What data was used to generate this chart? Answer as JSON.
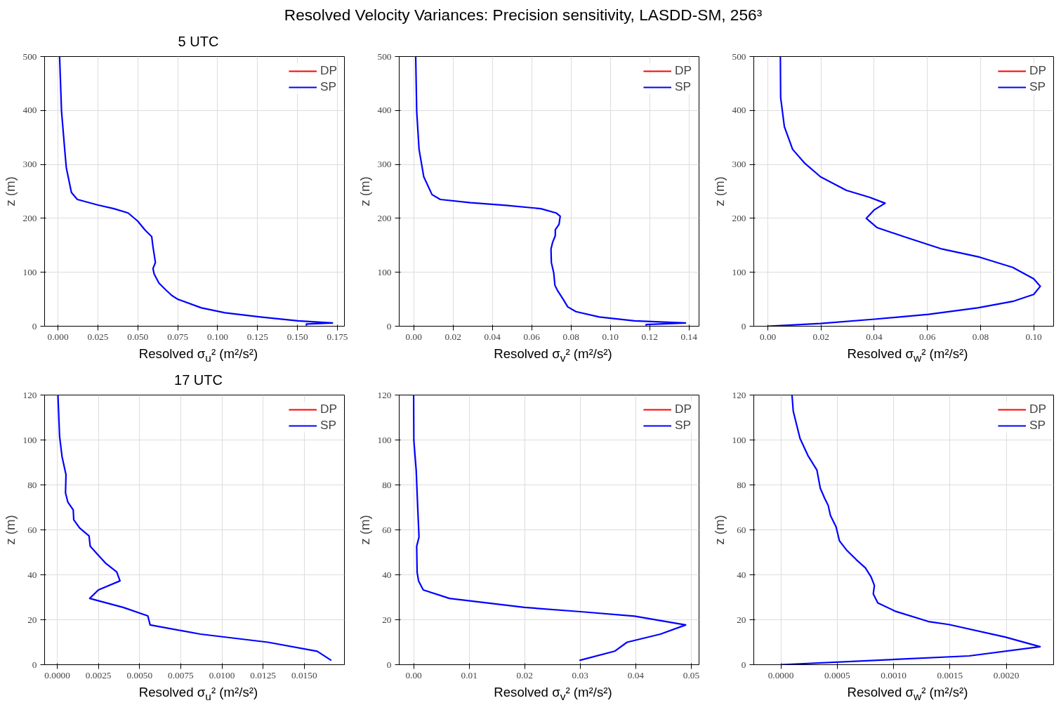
{
  "chart_data": [
    {
      "type": "line",
      "title": "5 UTC",
      "annotations": [
        "Resolved Velocity Variances: Precision sensitivity, LASDD-SM, 256³"
      ],
      "xlabel": "Resolved σ$_{u}$² (m²/s²)",
      "ylabel": "z (m)",
      "xlim": [
        -0.0084,
        0.1794
      ],
      "ylim": [
        0,
        500
      ],
      "xticks": [
        {
          "value": 0,
          "label": "0.000"
        },
        {
          "value": 0.025,
          "label": "0.025"
        },
        {
          "value": 0.05,
          "label": "0.050"
        },
        {
          "value": 0.075,
          "label": "0.075"
        },
        {
          "value": 0.1,
          "label": "0.100"
        },
        {
          "value": 0.125,
          "label": "0.125"
        },
        {
          "value": 0.15,
          "label": "0.150"
        },
        {
          "value": 0.175,
          "label": "0.175"
        }
      ],
      "yticks": [
        0,
        100,
        200,
        300,
        400,
        500
      ],
      "grid": true,
      "legend": "top right",
      "line_style": "solid",
      "series": [
        {
          "name": "DP",
          "color": "#ff0000",
          "x": [
            null
          ],
          "values": [
            null
          ]
        },
        {
          "name": "SP",
          "color": "#0000ff",
          "x": [
            0.001,
            0.0022,
            0.0043,
            0.0052,
            0.0084,
            0.0121,
            0.0247,
            0.035,
            0.0439,
            0.0499,
            0.0543,
            0.0587,
            0.0595,
            0.0602,
            0.061,
            0.0595,
            0.0602,
            0.0632,
            0.0676,
            0.0713,
            0.075,
            0.0898,
            0.1046,
            0.1268,
            0.1504,
            0.1719,
            0.1556,
            0.1556
          ],
          "values": [
            500,
            399,
            324,
            294,
            248,
            235,
            225,
            218,
            210,
            195,
            179,
            166,
            147,
            134,
            118,
            107,
            97,
            80,
            67,
            57,
            50,
            34,
            25,
            17,
            10,
            6,
            4,
            1
          ]
        }
      ]
    },
    {
      "type": "line",
      "xlabel": "Resolved σ$_{v}$² (m²/s²)",
      "ylabel": "z (m)",
      "xlim": [
        -0.0074,
        0.1451
      ],
      "ylim": [
        0,
        500
      ],
      "xticks": [
        {
          "value": 0,
          "label": "0.00"
        },
        {
          "value": 0.02,
          "label": "0.02"
        },
        {
          "value": 0.04,
          "label": "0.04"
        },
        {
          "value": 0.06,
          "label": "0.06"
        },
        {
          "value": 0.08,
          "label": "0.08"
        },
        {
          "value": 0.1,
          "label": "0.10"
        },
        {
          "value": 0.12,
          "label": "0.12"
        },
        {
          "value": 0.14,
          "label": "0.14"
        }
      ],
      "yticks": [
        0,
        100,
        200,
        300,
        400,
        500
      ],
      "grid": true,
      "legend": "top right",
      "line_style": "solid",
      "series": [
        {
          "name": "DP",
          "color": "#ff0000",
          "x": [
            null
          ],
          "values": [
            null
          ]
        },
        {
          "name": "SP",
          "color": "#0000ff",
          "x": [
            0.001,
            0.0015,
            0.0027,
            0.0051,
            0.0093,
            0.0135,
            0.0289,
            0.0468,
            0.0646,
            0.0724,
            0.0745,
            0.0739,
            0.072,
            0.072,
            0.0706,
            0.0698,
            0.07,
            0.0712,
            0.0718,
            0.073,
            0.076,
            0.0783,
            0.0825,
            0.0944,
            0.1123,
            0.1382,
            0.1182,
            0.1182
          ],
          "values": [
            500,
            399,
            328,
            277,
            244,
            235,
            229,
            224,
            218,
            210,
            204,
            189,
            179,
            168,
            155,
            143,
            118,
            99,
            76,
            67,
            50,
            36,
            27,
            17,
            10,
            6,
            3,
            1
          ]
        }
      ]
    },
    {
      "type": "line",
      "xlabel": "Resolved σ$_{w}$² (m²/s²)",
      "ylabel": "z (m)",
      "xlim": [
        -0.0053,
        0.1075
      ],
      "ylim": [
        0,
        500
      ],
      "xticks": [
        {
          "value": 0,
          "label": "0.00"
        },
        {
          "value": 0.02,
          "label": "0.02"
        },
        {
          "value": 0.04,
          "label": "0.04"
        },
        {
          "value": 0.06,
          "label": "0.06"
        },
        {
          "value": 0.08,
          "label": "0.08"
        },
        {
          "value": 0.1,
          "label": "0.10"
        }
      ],
      "yticks": [
        0,
        100,
        200,
        300,
        400,
        500
      ],
      "grid": true,
      "legend": "top right",
      "line_style": "solid",
      "series": [
        {
          "name": "DP",
          "color": "#ff0000",
          "x": [
            null
          ],
          "values": [
            null
          ]
        },
        {
          "name": "SP",
          "color": "#0000ff",
          "x": [
            0.0047,
            0.0048,
            0.0062,
            0.0093,
            0.0137,
            0.0198,
            0.0295,
            0.0383,
            0.0441,
            0.0401,
            0.037,
            0.041,
            0.0524,
            0.0656,
            0.0797,
            0.0921,
            0.1,
            0.1025,
            0.1,
            0.0921,
            0.0789,
            0.0604,
            0.0401,
            0.0198,
            0
          ],
          "values": [
            500,
            424,
            370,
            328,
            303,
            277,
            252,
            239,
            228,
            216,
            200,
            183,
            164,
            143,
            128,
            109,
            88,
            74,
            59,
            46,
            34,
            22,
            13,
            5,
            0
          ]
        }
      ]
    },
    {
      "type": "line",
      "title": "17 UTC",
      "xlabel": "Resolved σ$_{u}$² (m²/s²)",
      "ylabel": "z (m)",
      "xlim": [
        -0.00077,
        0.01744
      ],
      "ylim": [
        0,
        120
      ],
      "xticks": [
        {
          "value": 0,
          "label": "0.0000"
        },
        {
          "value": 0.0025,
          "label": "0.0025"
        },
        {
          "value": 0.005,
          "label": "0.0050"
        },
        {
          "value": 0.0075,
          "label": "0.0075"
        },
        {
          "value": 0.01,
          "label": "0.0100"
        },
        {
          "value": 0.0125,
          "label": "0.0125"
        },
        {
          "value": 0.015,
          "label": "0.0150"
        }
      ],
      "yticks": [
        0,
        20,
        40,
        60,
        80,
        100,
        120
      ],
      "grid": true,
      "legend": "top right",
      "line_style": "solid",
      "series": [
        {
          "name": "DP",
          "color": "#ff0000",
          "x": [
            null
          ],
          "values": [
            null
          ]
        },
        {
          "name": "SP",
          "color": "#0000ff",
          "x": [
            4e-05,
            0.00014,
            0.00029,
            0.00053,
            0.0005,
            0.00064,
            0.00097,
            0.001,
            0.00136,
            0.00193,
            0.002,
            0.00243,
            0.00293,
            0.00361,
            0.00381,
            0.0025,
            0.00197,
            0.004,
            0.0055,
            0.00564,
            0.00757,
            0.00871,
            0.01279,
            0.01579,
            0.01664
          ],
          "values": [
            120,
            101.7,
            92.6,
            84.5,
            76.5,
            72.4,
            68.9,
            64.5,
            60.8,
            57.3,
            52.7,
            49.2,
            45.2,
            41.3,
            37.3,
            33.3,
            29.5,
            25.5,
            21.7,
            17.7,
            15.1,
            13.6,
            10,
            6,
            1.9
          ]
        }
      ]
    },
    {
      "type": "line",
      "xlabel": "Resolved σ$_{v}$² (m²/s²)",
      "ylabel": "z (m)",
      "xlim": [
        -0.0026,
        0.0514
      ],
      "ylim": [
        0,
        120
      ],
      "xticks": [
        {
          "value": 0,
          "label": "0.00"
        },
        {
          "value": 0.01,
          "label": "0.01"
        },
        {
          "value": 0.02,
          "label": "0.02"
        },
        {
          "value": 0.03,
          "label": "0.03"
        },
        {
          "value": 0.04,
          "label": "0.04"
        },
        {
          "value": 0.05,
          "label": "0.05"
        }
      ],
      "yticks": [
        0,
        20,
        40,
        60,
        80,
        100,
        120
      ],
      "grid": true,
      "legend": "top right",
      "line_style": "solid",
      "series": [
        {
          "name": "DP",
          "color": "#ff0000",
          "x": [
            null
          ],
          "values": [
            null
          ]
        },
        {
          "name": "SP",
          "color": "#0000ff",
          "x": [
            0,
            4e-05,
            0.00046,
            0.00076,
            0.00097,
            0.00055,
            0.00063,
            0.00089,
            0.00173,
            0.00646,
            0.01996,
            0.03008,
            0.03979,
            0.04899,
            0.04443,
            0.03844,
            0.0362,
            0.02987
          ],
          "values": [
            120,
            99.7,
            86.6,
            68.4,
            56.8,
            52.7,
            41.1,
            37.3,
            33.3,
            29.5,
            25.5,
            23.6,
            21.6,
            17.7,
            13.6,
            10,
            6,
            1.9
          ]
        }
      ]
    },
    {
      "type": "line",
      "xlabel": "Resolved σ$_{w}$² (m²/s²)",
      "ylabel": "z (m)",
      "xlim": [
        -0.00024,
        0.00242
      ],
      "ylim": [
        0,
        120
      ],
      "xticks": [
        {
          "value": 0,
          "label": "0.0000"
        },
        {
          "value": 0.0005,
          "label": "0.0005"
        },
        {
          "value": 0.001,
          "label": "0.0010"
        },
        {
          "value": 0.0015,
          "label": "0.0015"
        },
        {
          "value": 0.002,
          "label": "0.0020"
        }
      ],
      "yticks": [
        0,
        20,
        40,
        60,
        80,
        100,
        120
      ],
      "grid": true,
      "legend": "top right",
      "line_style": "solid",
      "series": [
        {
          "name": "DP",
          "color": "#ff0000",
          "x": [
            null
          ],
          "values": [
            null
          ]
        },
        {
          "name": "SP",
          "color": "#0000ff",
          "x": [
            9.9e-05,
            0.00011,
            0.00017,
            0.00024,
            0.00032,
            0.00035,
            0.00039,
            0.00042,
            0.00044,
            0.00049,
            0.00052,
            0.00058,
            0.00067,
            0.00075,
            0.0008,
            0.00083,
            0.00082,
            0.00086,
            0.00102,
            0.00131,
            0.00149,
            0.00199,
            0.0023,
            0.00167,
            0
          ],
          "values": [
            120,
            112.8,
            100.7,
            93.1,
            86.6,
            78.5,
            73.9,
            70.9,
            66.4,
            61.3,
            55.1,
            51.2,
            46.7,
            43.1,
            39.1,
            35.3,
            31.5,
            27.5,
            23.7,
            19.2,
            17.9,
            12.3,
            8,
            3.9,
            0
          ]
        }
      ]
    }
  ]
}
